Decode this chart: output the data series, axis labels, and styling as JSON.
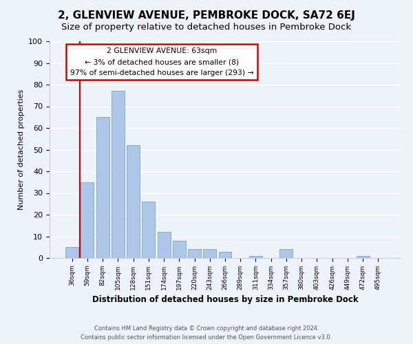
{
  "title": "2, GLENVIEW AVENUE, PEMBROKE DOCK, SA72 6EJ",
  "subtitle": "Size of property relative to detached houses in Pembroke Dock",
  "xlabel": "Distribution of detached houses by size in Pembroke Dock",
  "ylabel": "Number of detached properties",
  "bar_labels": [
    "36sqm",
    "59sqm",
    "82sqm",
    "105sqm",
    "128sqm",
    "151sqm",
    "174sqm",
    "197sqm",
    "220sqm",
    "243sqm",
    "266sqm",
    "289sqm",
    "311sqm",
    "334sqm",
    "357sqm",
    "380sqm",
    "403sqm",
    "426sqm",
    "449sqm",
    "472sqm",
    "495sqm"
  ],
  "bar_heights": [
    5,
    35,
    65,
    77,
    52,
    26,
    12,
    8,
    4,
    4,
    3,
    0,
    1,
    0,
    4,
    0,
    0,
    0,
    0,
    1,
    0
  ],
  "bar_color": "#aec6e8",
  "bar_edge_color": "#7aafd4",
  "vline_x": 1,
  "vline_color": "#cc0000",
  "annotation_title": "2 GLENVIEW AVENUE: 63sqm",
  "annotation_line1": "← 3% of detached houses are smaller (8)",
  "annotation_line2": "97% of semi-detached houses are larger (293) →",
  "annotation_box_color": "#ffffff",
  "annotation_box_edge": "#cc0000",
  "ylim": [
    0,
    100
  ],
  "yticks": [
    0,
    10,
    20,
    30,
    40,
    50,
    60,
    70,
    80,
    90,
    100
  ],
  "footer_line1": "Contains HM Land Registry data © Crown copyright and database right 2024.",
  "footer_line2": "Contains public sector information licensed under the Open Government Licence v3.0.",
  "bg_color": "#eef2f9",
  "title_fontsize": 11,
  "subtitle_fontsize": 9.5
}
